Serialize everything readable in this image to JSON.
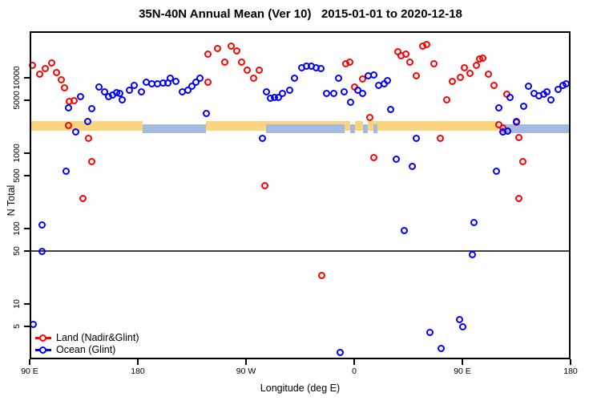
{
  "title": "35N-40N Annual Mean (Ver 10)   2015-01-01 to 2020-12-18",
  "axes": {
    "x": {
      "label": "Longitude (deg E)",
      "ticks": [
        {
          "lon": 90,
          "label": "90 E"
        },
        {
          "lon": 180,
          "label": "180"
        },
        {
          "lon": 270,
          "label": "90 W"
        },
        {
          "lon": 360,
          "label": "0"
        },
        {
          "lon": 450,
          "label": "90 E"
        },
        {
          "lon": 540,
          "label": "180"
        }
      ]
    },
    "y": {
      "label": "N Total",
      "ticks": [
        {
          "v": 10000,
          "label": "10000"
        },
        {
          "v": 5000,
          "label": "5000"
        },
        {
          "v": 1000,
          "label": "1000"
        },
        {
          "v": 500,
          "label": "500"
        },
        {
          "v": 100,
          "label": "100"
        },
        {
          "v": 50,
          "label": "50"
        },
        {
          "v": 10,
          "label": "10"
        },
        {
          "v": 5,
          "label": "5"
        }
      ]
    }
  },
  "chart_data": {
    "type": "scatter",
    "title": "35N-40N Annual Mean (Ver 10)   2015-01-01 to 2020-12-18",
    "xlabel": "Longitude (deg E)",
    "ylabel": "N Total",
    "x_axis_note": "longitude axis wraps: 90E,180,90W,0,90E,180 (stored as 90..540 deg extended)",
    "y_scale": "log10",
    "ylim": [
      1.8,
      41000
    ],
    "grid": false,
    "legend_position": "bottom-left",
    "reference_line": {
      "value": 50,
      "color": "#3F3F3F"
    },
    "band": {
      "gold_color": "#FAD57D",
      "blue_color": "#A5BAE0",
      "gold_n_range": [
        1950,
        2600
      ],
      "blue_n_range": [
        1800,
        2400
      ],
      "segments": [
        {
          "c": "gold",
          "l1": 90,
          "l2": 184
        },
        {
          "c": "gold",
          "l1": 236.7,
          "l2": 352
        },
        {
          "c": "blue",
          "l1": 184,
          "l2": 236.7
        },
        {
          "c": "blue",
          "l1": 286.7,
          "l2": 352
        },
        {
          "c": "gold",
          "l1": 352,
          "l2": 356.7
        },
        {
          "c": "blue",
          "l1": 356.7,
          "l2": 360.7
        },
        {
          "c": "gold",
          "l1": 360.7,
          "l2": 367.3
        },
        {
          "c": "blue",
          "l1": 367.3,
          "l2": 371.3
        },
        {
          "c": "gold",
          "l1": 371.3,
          "l2": 480
        },
        {
          "c": "blue",
          "l1": 376,
          "l2": 379
        },
        {
          "c": "blue",
          "l1": 482,
          "l2": 540
        }
      ]
    },
    "series": [
      {
        "name": "Land (Nadir&Glint)",
        "color": "#FF0000",
        "marker": "open-circle",
        "points": [
          [
            92.7,
            14300
          ],
          [
            98.7,
            10900
          ],
          [
            103.3,
            12950
          ],
          [
            108.7,
            15350
          ],
          [
            112.7,
            11450
          ],
          [
            116.7,
            9170
          ],
          [
            119.3,
            7180
          ],
          [
            123.3,
            4740
          ],
          [
            127.3,
            4860
          ],
          [
            122.7,
            2270
          ],
          [
            139.3,
            1530
          ],
          [
            142,
            750
          ],
          [
            134.7,
            243
          ],
          [
            238.7,
            8540
          ],
          [
            238.7,
            20100
          ],
          [
            246.7,
            23900
          ],
          [
            258,
            25700
          ],
          [
            262.7,
            22200
          ],
          [
            252.7,
            15750
          ],
          [
            266.7,
            15750
          ],
          [
            271.3,
            12300
          ],
          [
            276.7,
            9630
          ],
          [
            281.3,
            12300
          ],
          [
            286,
            360
          ],
          [
            333.3,
            23
          ],
          [
            373.3,
            2900
          ],
          [
            376.7,
            850
          ],
          [
            353.3,
            15000
          ],
          [
            356.7,
            15750
          ],
          [
            360.7,
            7360
          ],
          [
            367.3,
            9400
          ],
          [
            396.7,
            21650
          ],
          [
            399.3,
            19150
          ],
          [
            403.3,
            20150
          ],
          [
            406.7,
            15750
          ],
          [
            412,
            10400
          ],
          [
            417.3,
            25700
          ],
          [
            420.7,
            27050
          ],
          [
            426.7,
            15000
          ],
          [
            432,
            1530
          ],
          [
            437.3,
            4980
          ],
          [
            442,
            8780
          ],
          [
            448.7,
            9880
          ],
          [
            452,
            13270
          ],
          [
            456.7,
            11170
          ],
          [
            462,
            14260
          ],
          [
            464.7,
            17350
          ],
          [
            467.3,
            17800
          ],
          [
            472,
            10900
          ],
          [
            476.7,
            7730
          ],
          [
            487.3,
            5890
          ],
          [
            480.7,
            2330
          ],
          [
            484,
            2110
          ],
          [
            495.3,
            2500
          ],
          [
            497.3,
            1570
          ],
          [
            500.7,
            750
          ],
          [
            497.3,
            243
          ]
        ]
      },
      {
        "name": "Ocean (Glint)",
        "color": "#0000FF",
        "marker": "open-circle",
        "points": [
          [
            93.3,
            5.2
          ],
          [
            100.7,
            108
          ],
          [
            100.7,
            49
          ],
          [
            120.7,
            565
          ],
          [
            122.7,
            3900
          ],
          [
            128.7,
            1870
          ],
          [
            132.7,
            5480
          ],
          [
            138.7,
            2560
          ],
          [
            142,
            3800
          ],
          [
            148,
            7360
          ],
          [
            152.7,
            6350
          ],
          [
            156,
            5480
          ],
          [
            159.3,
            5760
          ],
          [
            162.7,
            6200
          ],
          [
            165.3,
            6050
          ],
          [
            167.3,
            4980
          ],
          [
            173.3,
            6660
          ],
          [
            177.3,
            7730
          ],
          [
            183.3,
            6350
          ],
          [
            187.3,
            8540
          ],
          [
            192,
            8120
          ],
          [
            196.7,
            8120
          ],
          [
            201.3,
            8330
          ],
          [
            205.3,
            8330
          ],
          [
            207.3,
            9630
          ],
          [
            212,
            8760
          ],
          [
            217.3,
            6350
          ],
          [
            222,
            6660
          ],
          [
            225.3,
            7550
          ],
          [
            228.7,
            8540
          ],
          [
            232,
            9630
          ],
          [
            237.3,
            3280
          ],
          [
            284,
            1530
          ],
          [
            287.3,
            6350
          ],
          [
            290.7,
            5220
          ],
          [
            294,
            5350
          ],
          [
            297.3,
            5350
          ],
          [
            300.7,
            6050
          ],
          [
            306.7,
            6660
          ],
          [
            310.7,
            9630
          ],
          [
            316.7,
            13270
          ],
          [
            320.7,
            13950
          ],
          [
            324.7,
            13950
          ],
          [
            328.7,
            13270
          ],
          [
            332.7,
            12950
          ],
          [
            337.3,
            6050
          ],
          [
            343.3,
            6050
          ],
          [
            347.3,
            9630
          ],
          [
            352,
            6350
          ],
          [
            357.3,
            4620
          ],
          [
            363.3,
            6660
          ],
          [
            367.3,
            6050
          ],
          [
            372,
            10400
          ],
          [
            376.7,
            10650
          ],
          [
            380.7,
            7730
          ],
          [
            385.3,
            8120
          ],
          [
            388,
            8990
          ],
          [
            390.7,
            3710
          ],
          [
            395.3,
            813
          ],
          [
            402,
            91
          ],
          [
            408.7,
            650
          ],
          [
            412,
            1530
          ],
          [
            423.3,
            4.1
          ],
          [
            432.7,
            2.5
          ],
          [
            448,
            6.1
          ],
          [
            450.7,
            4.9
          ],
          [
            458.7,
            44
          ],
          [
            460,
            117
          ],
          [
            478.7,
            565
          ],
          [
            480.7,
            3890
          ],
          [
            484,
            1870
          ],
          [
            488,
            1920
          ],
          [
            490,
            5350
          ],
          [
            495.3,
            2560
          ],
          [
            501.3,
            4080
          ],
          [
            505.3,
            7550
          ],
          [
            510,
            6050
          ],
          [
            514,
            5620
          ],
          [
            518,
            5890
          ],
          [
            520.7,
            6350
          ],
          [
            524,
            4980
          ],
          [
            530,
            6810
          ],
          [
            534,
            7730
          ],
          [
            536.7,
            8120
          ],
          [
            348.7,
            2.2
          ]
        ]
      }
    ]
  }
}
